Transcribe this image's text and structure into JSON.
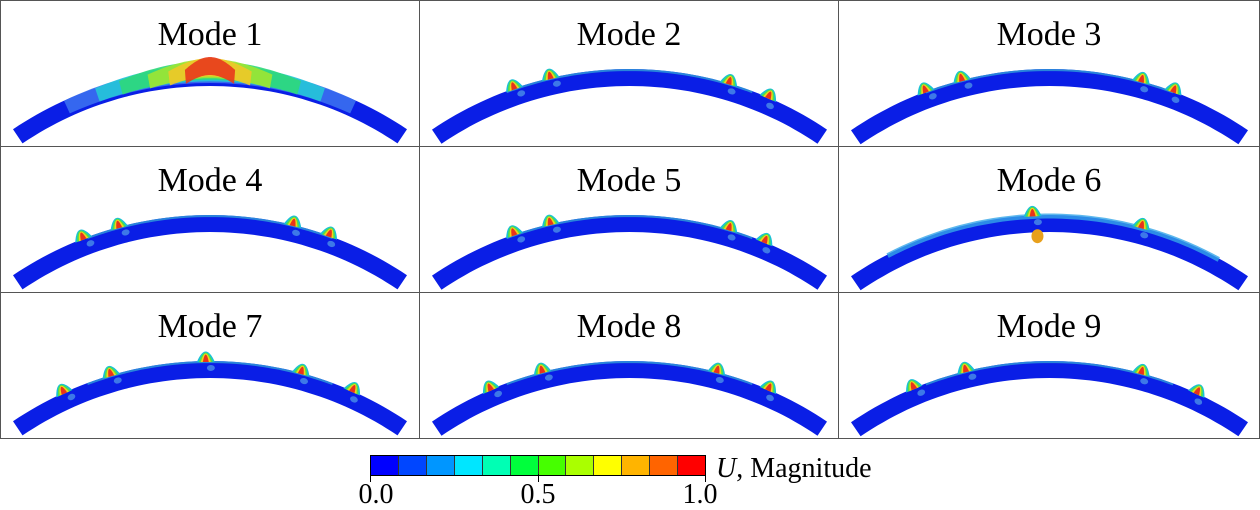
{
  "panels": [
    {
      "title": "Mode 1",
      "pattern": "global-bulge",
      "peaks": []
    },
    {
      "title": "Mode 2",
      "pattern": "local-ripples",
      "peaks": [
        0.22,
        0.31,
        0.74,
        0.84
      ]
    },
    {
      "title": "Mode 3",
      "pattern": "local-ripples",
      "peaks": [
        0.2,
        0.29,
        0.72,
        0.8
      ]
    },
    {
      "title": "Mode 4",
      "pattern": "local-ripples",
      "peaks": [
        0.19,
        0.28,
        0.7,
        0.79
      ]
    },
    {
      "title": "Mode 5",
      "pattern": "local-ripples",
      "peaks": [
        0.22,
        0.31,
        0.74,
        0.83
      ]
    },
    {
      "title": "Mode 6",
      "pattern": "center-dip",
      "peaks": [
        0.46,
        0.72
      ]
    },
    {
      "title": "Mode 7",
      "pattern": "local-ripples",
      "peaks": [
        0.14,
        0.26,
        0.49,
        0.72,
        0.85
      ]
    },
    {
      "title": "Mode 8",
      "pattern": "local-ripples",
      "peaks": [
        0.16,
        0.29,
        0.71,
        0.84
      ]
    },
    {
      "title": "Mode 9",
      "pattern": "local-ripples",
      "peaks": [
        0.17,
        0.3,
        0.72,
        0.86
      ]
    }
  ],
  "legend": {
    "variable": "U",
    "label": ", Magnitude",
    "ticks": [
      "0.0",
      "0.5",
      "1.0"
    ],
    "colors": [
      "#0000ff",
      "#0046ff",
      "#0096ff",
      "#00e6ff",
      "#00ffb4",
      "#00ff3c",
      "#46ff00",
      "#aaff00",
      "#ffff00",
      "#ffb400",
      "#ff6400",
      "#ff0000"
    ]
  },
  "colors": {
    "base": "#0a1ee6",
    "frame": "#555555"
  }
}
